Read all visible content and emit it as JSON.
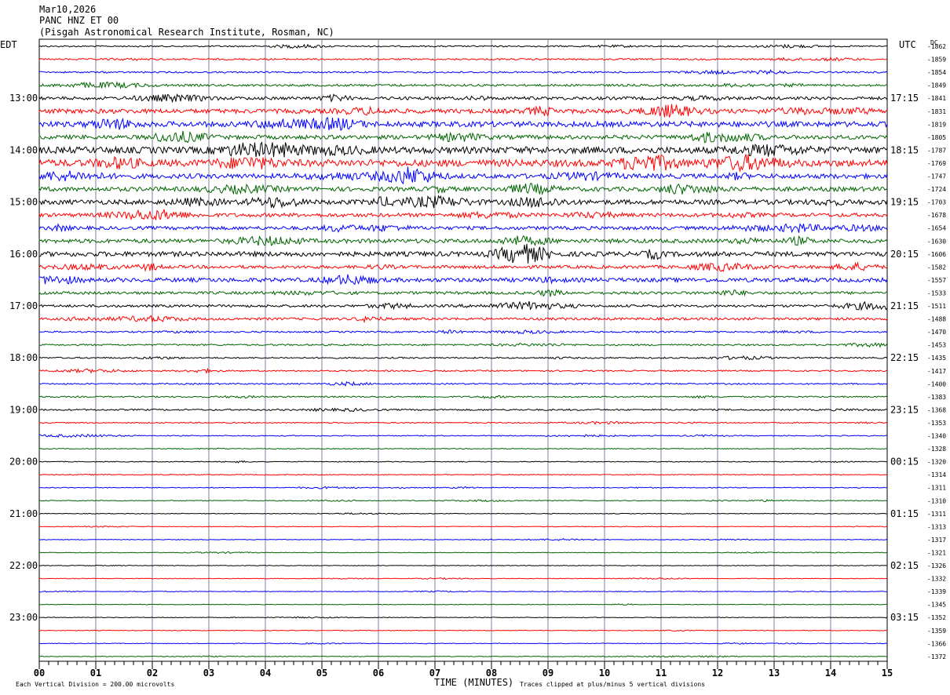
{
  "header": {
    "date": "Mar10,2026",
    "station": "PANC HNZ ET 00",
    "location": "(Pisgah Astronomical Research Institute, Rosman, NC)"
  },
  "chart_data": {
    "type": "line",
    "left_axis_label": "EDT",
    "right_axis_label": "UTC",
    "dc_label": "DC",
    "xlabel": "TIME (MINUTES)",
    "x_ticks": [
      "00",
      "01",
      "02",
      "03",
      "04",
      "05",
      "06",
      "07",
      "08",
      "09",
      "10",
      "11",
      "12",
      "13",
      "14",
      "15"
    ],
    "xlim": [
      0,
      15
    ],
    "left_hour_labels": [
      "13:00",
      "14:00",
      "15:00",
      "16:00",
      "17:00",
      "18:00",
      "19:00",
      "20:00",
      "21:00",
      "22:00",
      "23:00"
    ],
    "right_hour_labels": [
      "17:15",
      "18:15",
      "19:15",
      "20:15",
      "21:15",
      "22:15",
      "23:15",
      "00:15",
      "01:15",
      "02:15",
      "03:15"
    ],
    "dc_offsets": [
      -1862,
      -1859,
      -1854,
      -1849,
      -1841,
      -1831,
      -1819,
      -1805,
      -1787,
      -1769,
      -1747,
      -1724,
      -1703,
      -1678,
      -1654,
      -1630,
      -1606,
      -1582,
      -1557,
      -1533,
      -1511,
      -1488,
      -1470,
      -1453,
      -1435,
      -1417,
      -1400,
      -1383,
      -1368,
      -1353,
      -1340,
      -1328,
      -1320,
      -1314,
      -1311,
      -1310,
      -1311,
      -1313,
      -1317,
      -1321,
      -1326,
      -1332,
      -1339,
      -1345,
      -1352,
      -1359,
      -1366,
      -1372
    ],
    "trace_colors": [
      "#000000",
      "#ff0000",
      "#0000ff",
      "#006400"
    ],
    "gridline_color": "#7f7f9f",
    "trace_amplitudes": [
      0.9,
      1.0,
      1.0,
      1.4,
      2.0,
      2.8,
      3.4,
      2.6,
      4.2,
      4.4,
      3.0,
      2.8,
      3.0,
      2.4,
      2.2,
      2.6,
      3.0,
      2.0,
      2.6,
      1.8,
      1.6,
      1.6,
      1.0,
      1.0,
      0.9,
      0.9,
      0.9,
      0.9,
      1.0,
      0.7,
      0.6,
      0.5,
      0.5,
      0.5,
      0.5,
      0.5,
      0.4,
      0.4,
      0.4,
      0.4,
      0.4,
      0.4,
      0.4,
      0.4,
      0.4,
      0.4,
      0.4,
      0.4
    ],
    "footer_left": "Each Vertical Division =  200.00 microvolts",
    "footer_right": "Traces clipped at plus/minus 5 vertical divisions"
  }
}
